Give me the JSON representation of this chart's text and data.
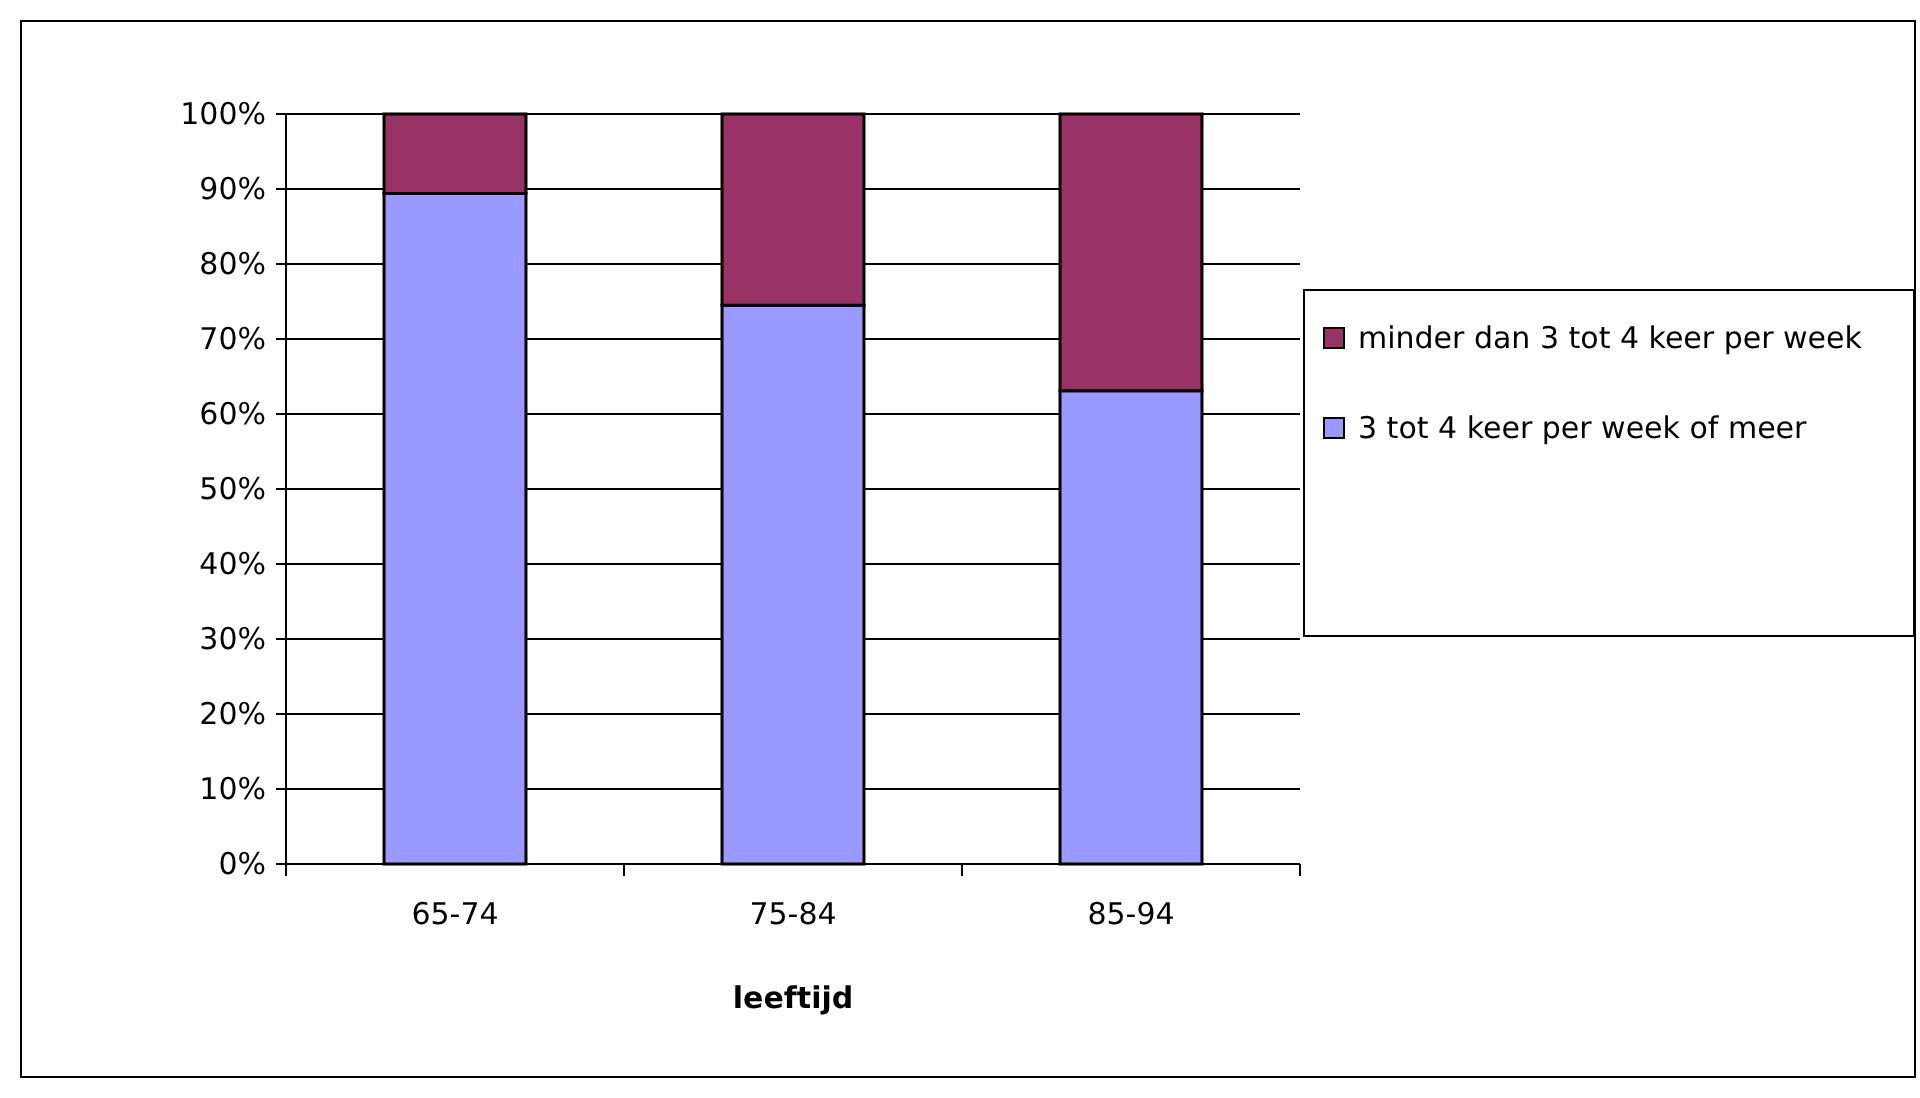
{
  "chart_data": {
    "type": "bar",
    "stacked": true,
    "xlabel": "leeftijd",
    "categories": [
      "65-74",
      "75-84",
      "85-94"
    ],
    "series": [
      {
        "name": "3 tot 4 keer per week of meer",
        "color": "#9999ff",
        "values": [
          89.4,
          74.5,
          63.1
        ]
      },
      {
        "name": "minder dan 3 tot 4 keer per week",
        "color": "#993366",
        "values": [
          10.6,
          25.5,
          36.9
        ]
      }
    ],
    "ylim": [
      0,
      100
    ],
    "yticks": [
      {
        "value": 0,
        "label": "0%"
      },
      {
        "value": 10,
        "label": "10%"
      },
      {
        "value": 20,
        "label": "20%"
      },
      {
        "value": 30,
        "label": "30%"
      },
      {
        "value": 40,
        "label": "40%"
      },
      {
        "value": 50,
        "label": "50%"
      },
      {
        "value": 60,
        "label": "60%"
      },
      {
        "value": 70,
        "label": "70%"
      },
      {
        "value": 80,
        "label": "80%"
      },
      {
        "value": 90,
        "label": "90%"
      },
      {
        "value": 100,
        "label": "100%"
      }
    ],
    "grid": "y",
    "legend": "right"
  }
}
